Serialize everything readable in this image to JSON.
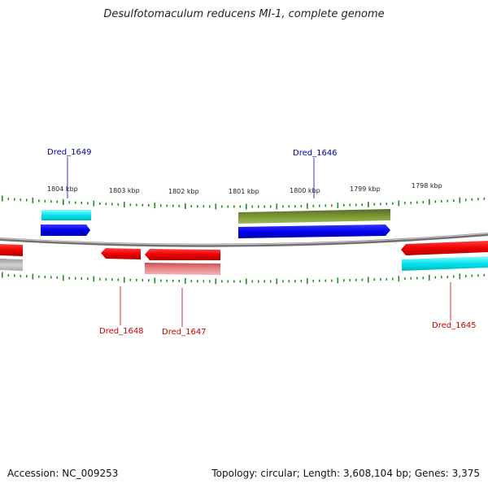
{
  "title": "Desulfotomaculum reducens MI-1, complete genome",
  "footer": {
    "accession": "Accession: NC_009253",
    "topology": "Topology: circular; Length: 3,608,104 bp; Genes: 3,375"
  },
  "ticks": [
    "1804 kbp",
    "1803 kbp",
    "1802 kbp",
    "1801 kbp",
    "1800 kbp",
    "1799 kbp",
    "1798 kbp"
  ],
  "gene_labels": {
    "dred_1649": "Dred_1649",
    "dred_1646": "Dred_1646",
    "dred_1648": "Dred_1648",
    "dred_1647": "Dred_1647",
    "dred_1645": "Dred_1645"
  },
  "colors": {
    "forward_cds": "#0000ee",
    "reverse_cds": "#ee0000",
    "cyan_feature": "#00e5ee",
    "olive_feature": "#6b8e23",
    "pink_feature": "#e08080",
    "tick_green": "#228b22",
    "label_blue": "#0000aa",
    "label_red": "#cc0000"
  }
}
